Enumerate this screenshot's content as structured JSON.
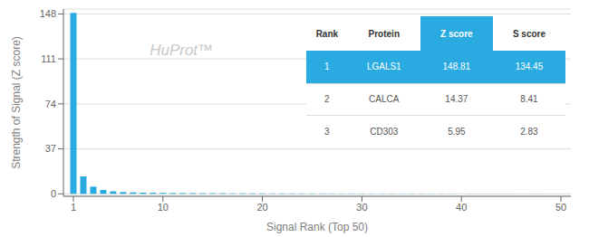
{
  "chart_data": {
    "type": "bar",
    "x": [
      1,
      2,
      3,
      4,
      5,
      6,
      7,
      8,
      9,
      10,
      11,
      12,
      13,
      14,
      15,
      16,
      17,
      18,
      19,
      20,
      21,
      22,
      23,
      24,
      25,
      26,
      27,
      28,
      29,
      30,
      31,
      32,
      33,
      34,
      35,
      36,
      37,
      38,
      39,
      40,
      41,
      42,
      43,
      44,
      45,
      46,
      47,
      48,
      49,
      50
    ],
    "values": [
      148.81,
      14.37,
      5.95,
      3.2,
      2.1,
      1.5,
      1.2,
      1.0,
      0.9,
      0.8,
      0.7,
      0.65,
      0.6,
      0.55,
      0.5,
      0.48,
      0.45,
      0.42,
      0.4,
      0.38,
      0.36,
      0.34,
      0.32,
      0.3,
      0.28,
      0.27,
      0.26,
      0.25,
      0.24,
      0.23,
      0.22,
      0.21,
      0.2,
      0.19,
      0.18,
      0.17,
      0.16,
      0.15,
      0.14,
      0.13,
      0.12,
      0.11,
      0.1,
      0.09,
      0.08,
      0.07,
      0.06,
      0.05,
      0.04,
      0.03
    ],
    "color": "#29ABE2",
    "xlim": [
      0,
      51
    ],
    "xticks": [
      1,
      10,
      20,
      30,
      40,
      50
    ],
    "ylim": [
      -2,
      152
    ],
    "yticks": [
      0,
      37,
      74,
      111,
      148
    ],
    "xlabel": "Signal Rank (Top 50)",
    "ylabel": "Strength of Signal (Z score)",
    "grid": true,
    "annotations": [
      {
        "text": "HuProt™",
        "color": "#c8c8c8"
      }
    ],
    "table": {
      "columns": [
        "Rank",
        "Protein",
        "Z score",
        "S score"
      ],
      "rows": [
        [
          "1",
          "LGALS1",
          "148.81",
          "134.45"
        ],
        [
          "2",
          "CALCA",
          "14.37",
          "8.41"
        ],
        [
          "3",
          "CD303",
          "5.95",
          "2.83"
        ]
      ]
    }
  }
}
